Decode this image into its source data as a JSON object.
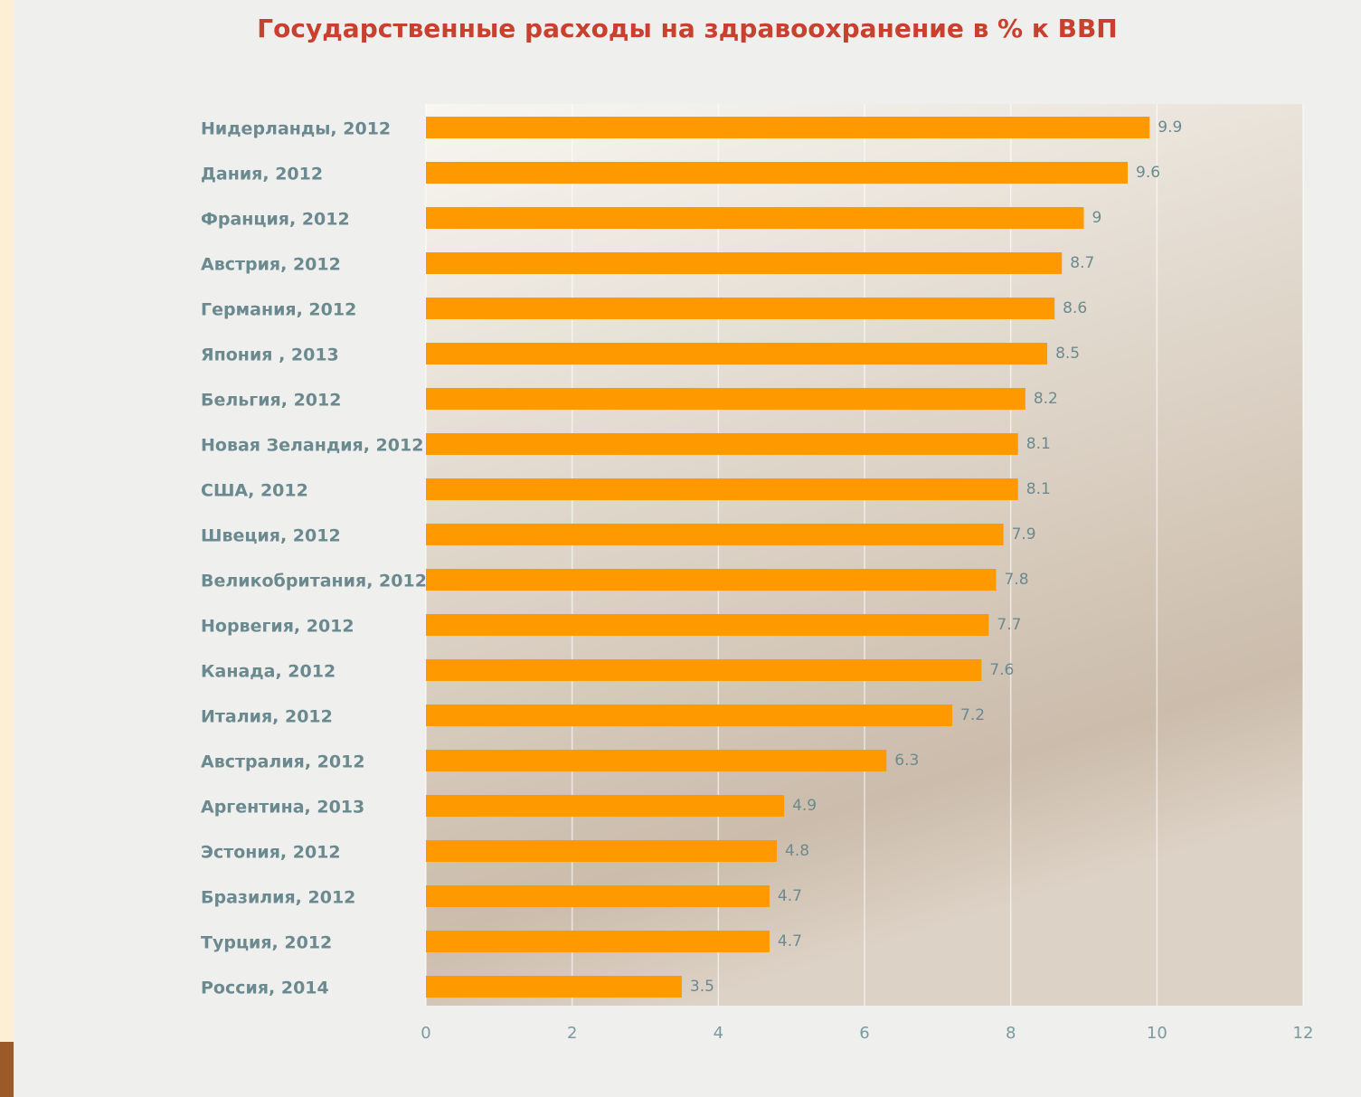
{
  "chart_data": {
    "type": "bar",
    "orientation": "horizontal",
    "title": "Государственные расходы на здравоохранение  в % к ВВП",
    "categories": [
      "Нидерланды, 2012",
      "Дания, 2012",
      "Франция, 2012",
      "Австрия, 2012",
      "Германия, 2012",
      "Япония , 2013",
      "Бельгия,  2012",
      "Новая Зеландия, 2012",
      "США, 2012",
      "Швеция, 2012",
      "Великобритания, 2012",
      "Норвегия, 2012",
      "Канада, 2012",
      "Италия, 2012",
      "Австралия, 2012",
      "Аргентина, 2013",
      "Эстония, 2012",
      "Бразилия, 2012",
      "Турция, 2012",
      "Россия, 2014"
    ],
    "values": [
      9.9,
      9.6,
      9,
      8.7,
      8.6,
      8.5,
      8.2,
      8.1,
      8.1,
      7.9,
      7.8,
      7.7,
      7.6,
      7.2,
      6.3,
      4.9,
      4.8,
      4.7,
      4.7,
      3.5
    ],
    "color": "#ff9900",
    "xlim": [
      0,
      12
    ],
    "xticks": [
      0,
      2,
      4,
      6,
      8,
      10,
      12
    ],
    "grid": true
  }
}
